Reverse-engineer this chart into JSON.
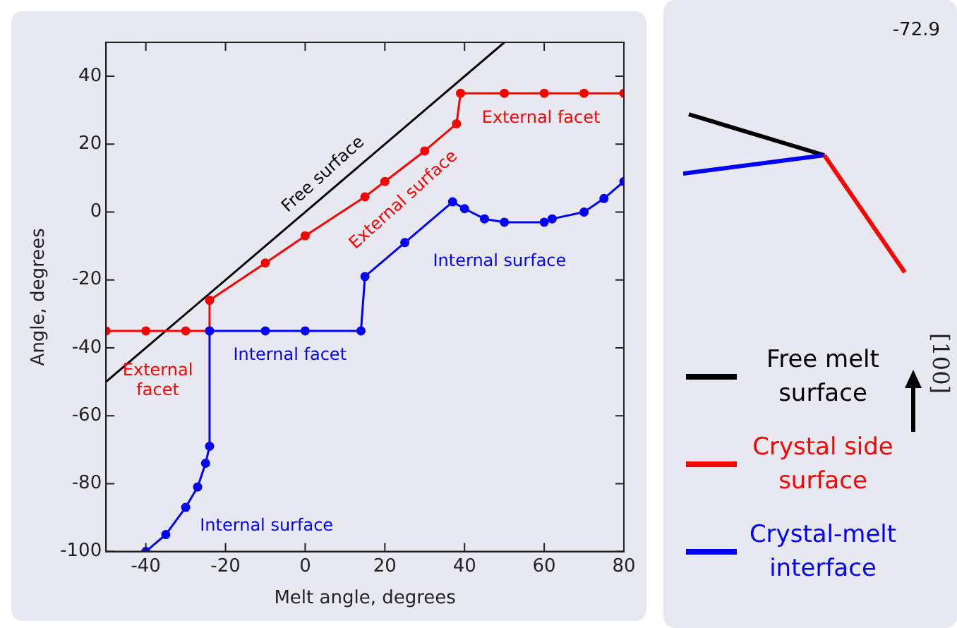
{
  "chart_data": {
    "type": "line",
    "xlabel": "Melt angle, degrees",
    "ylabel": "Angle, degrees",
    "xlim": [
      -50,
      80
    ],
    "ylim": [
      -100,
      50
    ],
    "xticks": [
      -40,
      -20,
      0,
      20,
      40,
      60,
      80
    ],
    "yticks": [
      -100,
      -80,
      -60,
      -40,
      -20,
      0,
      20,
      40
    ],
    "grid": false,
    "legend": "right",
    "series": [
      {
        "name": "Free melt surface",
        "color": "#000000",
        "marker": "none",
        "x": [
          -50,
          50
        ],
        "values": [
          -50,
          50
        ]
      },
      {
        "name": "Crystal side surface",
        "color": "#ff0000",
        "marker": "circle",
        "x": [
          -50,
          -40,
          -30,
          -24,
          -24,
          -10,
          0,
          15,
          20,
          30,
          38,
          39,
          50,
          60,
          70,
          80
        ],
        "values": [
          -35,
          -35,
          -35,
          -35,
          -26,
          -15,
          -7,
          4.5,
          9,
          18,
          26,
          35,
          35,
          35,
          35,
          35
        ]
      },
      {
        "name": "Crystal-melt interface",
        "color": "#0000ff",
        "marker": "circle",
        "x": [
          -40,
          -35,
          -30,
          -27,
          -25,
          -24,
          -24,
          -10,
          0,
          14,
          15,
          25,
          37,
          40,
          45,
          50,
          60,
          62,
          70,
          75,
          80
        ],
        "values": [
          -100,
          -95,
          -87,
          -81,
          -74,
          -69,
          -35,
          -35,
          -35,
          -35,
          -19,
          -9,
          3,
          1,
          -2,
          -3,
          -3,
          -2,
          0,
          4,
          9
        ]
      }
    ],
    "annotations": [
      "Free surface",
      "External surface",
      "External facet",
      "External facet",
      "Internal facet",
      "Internal surface",
      "Internal surface",
      "-72.9",
      "[100]"
    ]
  }
}
